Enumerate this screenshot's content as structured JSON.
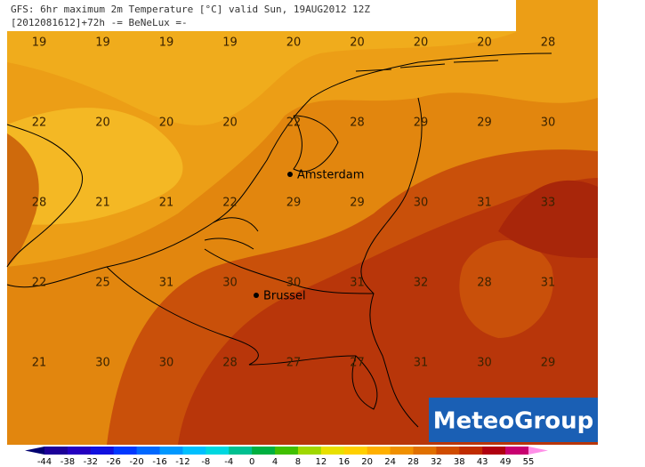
{
  "header": {
    "line1": "GFS: 6hr maximum 2m Temperature [°C] valid Sun, 19AUG2012 12Z",
    "line2": "[2012081612]+72h -= BeNeLux =-"
  },
  "grid": {
    "rows": [
      [
        19,
        19,
        19,
        19,
        20,
        20,
        20,
        20,
        28
      ],
      [
        22,
        20,
        20,
        20,
        22,
        28,
        29,
        29,
        30
      ],
      [
        28,
        21,
        21,
        22,
        29,
        29,
        30,
        31,
        33
      ],
      [
        22,
        25,
        31,
        30,
        30,
        31,
        32,
        28,
        31
      ],
      [
        21,
        30,
        30,
        28,
        27,
        27,
        31,
        30,
        29
      ]
    ]
  },
  "cities": [
    {
      "label": "Amsterdam"
    },
    {
      "label": "Brussel"
    }
  ],
  "colorbar": {
    "ticks": [
      -44,
      -38,
      -32,
      -26,
      -20,
      -16,
      -12,
      -8,
      -4,
      0,
      4,
      8,
      12,
      16,
      20,
      24,
      28,
      32,
      38,
      43,
      49,
      55
    ],
    "colors": [
      "#000070",
      "#1c0098",
      "#2400c0",
      "#1010e0",
      "#0038ff",
      "#0068ff",
      "#0098ff",
      "#00c0ff",
      "#00d8e0",
      "#00c090",
      "#00b040",
      "#40c000",
      "#a0d800",
      "#e8e000",
      "#ffd000",
      "#ffb000",
      "#f09000",
      "#e07000",
      "#d04c00",
      "#c02c00",
      "#b00010",
      "#c80070",
      "#e040c8",
      "#ff90e8"
    ]
  },
  "logo": {
    "text": "MeteoGroup"
  }
}
